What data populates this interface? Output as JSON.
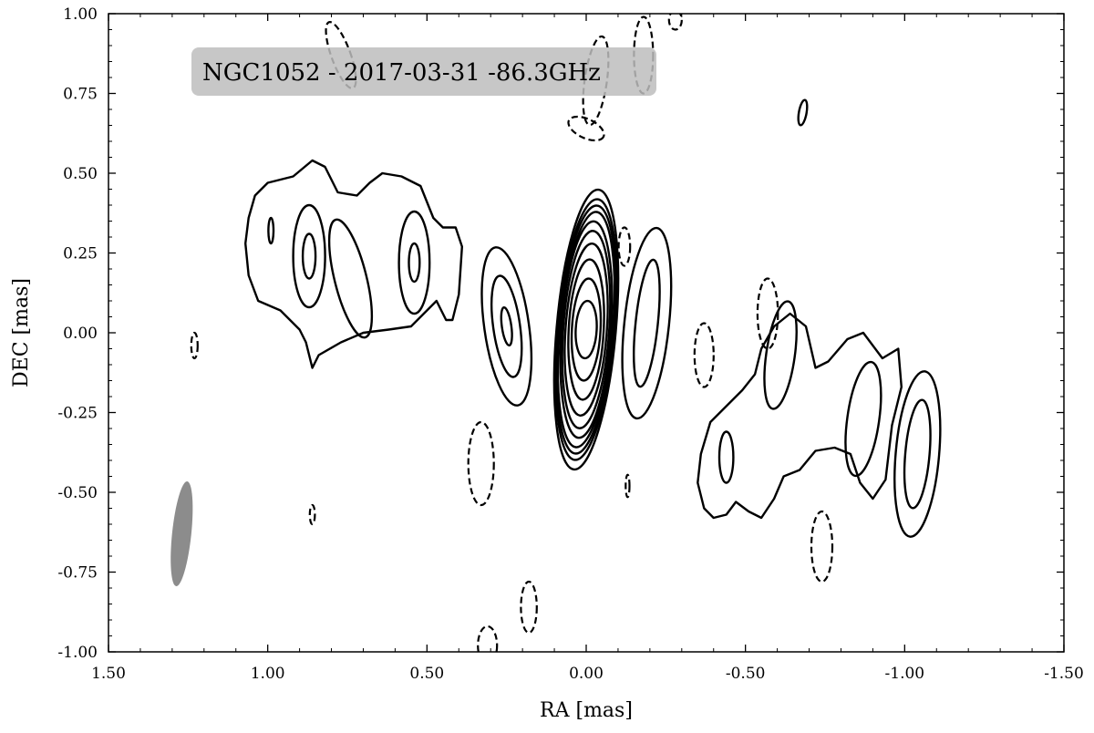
{
  "chart_data": {
    "type": "contour",
    "title": "NGC1052 - 2017-03-31 -86.3GHz",
    "xlabel": "RA [mas]",
    "ylabel": "DEC [mas]",
    "xlim": [
      1.5,
      -1.5
    ],
    "ylim": [
      -1.0,
      1.0
    ],
    "x_ticks": [
      1.5,
      1.0,
      0.5,
      0.0,
      -0.5,
      -1.0,
      -1.5
    ],
    "x_tick_labels": [
      "1.50",
      "1.00",
      "0.50",
      "0.00",
      "-0.50",
      "-1.00",
      "-1.50"
    ],
    "y_ticks": [
      -1.0,
      -0.75,
      -0.5,
      -0.25,
      0.0,
      0.25,
      0.5,
      0.75,
      1.0
    ],
    "y_tick_labels": [
      "-1.00",
      "-0.75",
      "-0.50",
      "-0.25",
      "0.00",
      "0.25",
      "0.50",
      "0.75",
      "1.00"
    ],
    "grid": false,
    "beam": {
      "ra": 1.27,
      "dec": -0.63,
      "major": 0.33,
      "minor": 0.06,
      "pa_deg": 6,
      "color": "#8c8c8c"
    },
    "positive_components": [
      {
        "name": "core",
        "ra": 0.0,
        "dec": 0.01,
        "levels": [
          {
            "a": 0.033,
            "b": 0.09,
            "rot": 3
          },
          {
            "a": 0.045,
            "b": 0.16,
            "rot": 3
          },
          {
            "a": 0.055,
            "b": 0.22,
            "rot": 3
          },
          {
            "a": 0.065,
            "b": 0.27,
            "rot": 4
          },
          {
            "a": 0.072,
            "b": 0.31,
            "rot": 4
          },
          {
            "a": 0.078,
            "b": 0.34,
            "rot": 4
          },
          {
            "a": 0.083,
            "b": 0.37,
            "rot": 5
          },
          {
            "a": 0.087,
            "b": 0.39,
            "rot": 5
          },
          {
            "a": 0.09,
            "b": 0.41,
            "rot": 5
          },
          {
            "a": 0.093,
            "b": 0.44,
            "rot": 5
          }
        ]
      },
      {
        "name": "east-inner",
        "ra": 0.25,
        "dec": 0.02,
        "levels": [
          {
            "a": 0.015,
            "b": 0.06,
            "rot": -8
          },
          {
            "a": 0.042,
            "b": 0.16,
            "rot": -8
          },
          {
            "a": 0.07,
            "b": 0.25,
            "rot": -8
          }
        ]
      },
      {
        "name": "west-inner",
        "ra": -0.19,
        "dec": 0.03,
        "levels": [
          {
            "a": 0.035,
            "b": 0.2,
            "rot": 6
          },
          {
            "a": 0.07,
            "b": 0.3,
            "rot": 6
          }
        ]
      },
      {
        "name": "east-knot-a",
        "ra": 0.87,
        "dec": 0.24,
        "levels": [
          {
            "a": 0.02,
            "b": 0.07,
            "rot": 0
          },
          {
            "a": 0.05,
            "b": 0.16,
            "rot": 0
          }
        ]
      },
      {
        "name": "east-knot-b",
        "ra": 0.54,
        "dec": 0.22,
        "levels": [
          {
            "a": 0.017,
            "b": 0.06,
            "rot": 0
          },
          {
            "a": 0.048,
            "b": 0.16,
            "rot": 0
          }
        ]
      },
      {
        "name": "east-knot-c",
        "ra": 0.74,
        "dec": 0.17,
        "levels": [
          {
            "a": 0.05,
            "b": 0.19,
            "rot": -14
          }
        ]
      },
      {
        "name": "east-knot-d",
        "ra": 0.99,
        "dec": 0.32,
        "levels": [
          {
            "a": 0.008,
            "b": 0.04,
            "rot": 0
          }
        ]
      },
      {
        "name": "west-knot-a",
        "ra": -0.61,
        "dec": -0.07,
        "levels": [
          {
            "a": 0.045,
            "b": 0.17,
            "rot": 8
          }
        ]
      },
      {
        "name": "west-knot-b",
        "ra": -0.87,
        "dec": -0.27,
        "levels": [
          {
            "a": 0.05,
            "b": 0.18,
            "rot": 8
          }
        ]
      },
      {
        "name": "west-knot-c",
        "ra": -1.04,
        "dec": -0.38,
        "levels": [
          {
            "a": 0.038,
            "b": 0.17,
            "rot": 5
          },
          {
            "a": 0.068,
            "b": 0.26,
            "rot": 5
          }
        ]
      },
      {
        "name": "west-knot-d",
        "ra": -0.44,
        "dec": -0.39,
        "levels": [
          {
            "a": 0.022,
            "b": 0.08,
            "rot": 0
          }
        ]
      },
      {
        "name": "far-northwest",
        "ra": -0.68,
        "dec": 0.69,
        "levels": [
          {
            "a": 0.012,
            "b": 0.04,
            "rot": 10
          }
        ]
      }
    ],
    "positive_outlines": [
      {
        "name": "east-envelope",
        "points": [
          [
            1.04,
            0.43
          ],
          [
            1.0,
            0.47
          ],
          [
            0.92,
            0.49
          ],
          [
            0.86,
            0.54
          ],
          [
            0.82,
            0.52
          ],
          [
            0.78,
            0.44
          ],
          [
            0.72,
            0.43
          ],
          [
            0.68,
            0.47
          ],
          [
            0.64,
            0.5
          ],
          [
            0.58,
            0.49
          ],
          [
            0.52,
            0.46
          ],
          [
            0.48,
            0.36
          ],
          [
            0.45,
            0.33
          ],
          [
            0.41,
            0.33
          ],
          [
            0.39,
            0.27
          ],
          [
            0.4,
            0.12
          ],
          [
            0.42,
            0.04
          ],
          [
            0.44,
            0.04
          ],
          [
            0.47,
            0.1
          ],
          [
            0.55,
            0.02
          ],
          [
            0.62,
            0.01
          ],
          [
            0.7,
            0.0
          ],
          [
            0.77,
            -0.03
          ],
          [
            0.84,
            -0.07
          ],
          [
            0.86,
            -0.11
          ],
          [
            0.88,
            -0.03
          ],
          [
            0.9,
            0.01
          ],
          [
            0.96,
            0.07
          ],
          [
            1.03,
            0.1
          ],
          [
            1.06,
            0.18
          ],
          [
            1.07,
            0.28
          ],
          [
            1.06,
            0.36
          ],
          [
            1.04,
            0.43
          ]
        ]
      },
      {
        "name": "west-envelope",
        "points": [
          [
            -0.43,
            -0.24
          ],
          [
            -0.49,
            -0.18
          ],
          [
            -0.53,
            -0.13
          ],
          [
            -0.55,
            -0.05
          ],
          [
            -0.59,
            0.02
          ],
          [
            -0.64,
            0.06
          ],
          [
            -0.69,
            0.02
          ],
          [
            -0.72,
            -0.11
          ],
          [
            -0.76,
            -0.09
          ],
          [
            -0.82,
            -0.02
          ],
          [
            -0.87,
            0.0
          ],
          [
            -0.93,
            -0.08
          ],
          [
            -0.98,
            -0.05
          ],
          [
            -0.99,
            -0.17
          ],
          [
            -0.96,
            -0.29
          ],
          [
            -0.94,
            -0.46
          ],
          [
            -0.9,
            -0.52
          ],
          [
            -0.86,
            -0.47
          ],
          [
            -0.83,
            -0.38
          ],
          [
            -0.78,
            -0.36
          ],
          [
            -0.72,
            -0.37
          ],
          [
            -0.67,
            -0.43
          ],
          [
            -0.62,
            -0.45
          ],
          [
            -0.59,
            -0.52
          ],
          [
            -0.55,
            -0.58
          ],
          [
            -0.51,
            -0.56
          ],
          [
            -0.47,
            -0.53
          ],
          [
            -0.44,
            -0.57
          ],
          [
            -0.4,
            -0.58
          ],
          [
            -0.37,
            -0.55
          ],
          [
            -0.35,
            -0.47
          ],
          [
            -0.36,
            -0.38
          ],
          [
            -0.39,
            -0.28
          ],
          [
            -0.43,
            -0.24
          ]
        ]
      }
    ],
    "negative_components": [
      {
        "ra": -0.03,
        "dec": 0.79,
        "a": 0.035,
        "b": 0.14,
        "rot": 8
      },
      {
        "ra": -0.18,
        "dec": 0.87,
        "a": 0.03,
        "b": 0.12,
        "rot": 0
      },
      {
        "ra": 0.0,
        "dec": 0.64,
        "a": 0.06,
        "b": 0.03,
        "rot": 25
      },
      {
        "ra": 0.77,
        "dec": 0.87,
        "a": 0.03,
        "b": 0.11,
        "rot": -20
      },
      {
        "ra": -0.28,
        "dec": 0.98,
        "a": 0.02,
        "b": 0.03,
        "rot": 0
      },
      {
        "ra": -0.12,
        "dec": 0.27,
        "a": 0.018,
        "b": 0.06,
        "rot": 0
      },
      {
        "ra": -0.57,
        "dec": 0.06,
        "a": 0.032,
        "b": 0.11,
        "rot": 0
      },
      {
        "ra": -0.37,
        "dec": -0.07,
        "a": 0.03,
        "b": 0.1,
        "rot": 0
      },
      {
        "ra": 1.23,
        "dec": -0.04,
        "a": 0.01,
        "b": 0.04,
        "rot": 0
      },
      {
        "ra": 0.33,
        "dec": -0.41,
        "a": 0.04,
        "b": 0.13,
        "rot": 0
      },
      {
        "ra": -0.13,
        "dec": -0.48,
        "a": 0.006,
        "b": 0.035,
        "rot": 0
      },
      {
        "ra": 0.86,
        "dec": -0.57,
        "a": 0.008,
        "b": 0.03,
        "rot": 0
      },
      {
        "ra": -0.74,
        "dec": -0.67,
        "a": 0.033,
        "b": 0.11,
        "rot": 0
      },
      {
        "ra": 0.18,
        "dec": -0.86,
        "a": 0.025,
        "b": 0.08,
        "rot": 0
      },
      {
        "ra": 0.31,
        "dec": -0.98,
        "a": 0.03,
        "b": 0.06,
        "rot": 0
      }
    ]
  }
}
